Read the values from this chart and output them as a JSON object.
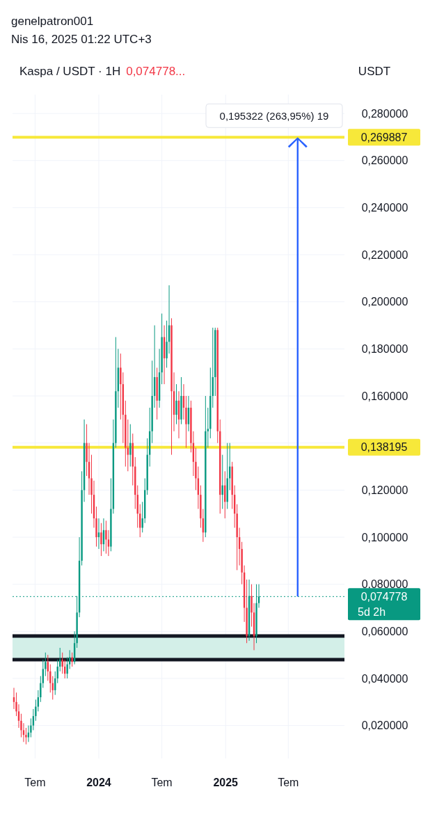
{
  "chart_data": {
    "type": "candlestick",
    "title": "genelpatron001",
    "subtitle": "Nis 16, 2025 01:22 UTC+3",
    "legend_title": "Kaspa / USDT · 1H",
    "ylabel": "USDT",
    "colors": [
      "#f23645",
      "#f23645",
      "#f23645",
      "#f23645",
      "#f23645",
      "#f23645",
      "#089981",
      "#089981",
      "#089981",
      "#089981",
      "#089981",
      "#089981",
      "#089981",
      "#089981",
      "#f23645",
      "#f23645",
      "#f23645",
      "#089981",
      "#089981",
      "#089981",
      "#f23645",
      "#f23645",
      "#089981",
      "#089981",
      "#f23645",
      "#089981",
      "#089981",
      "#089981",
      "#089981",
      "#089981",
      "#f23645",
      "#f23645",
      "#f23645",
      "#f23645",
      "#f23645",
      "#089981",
      "#f23645",
      "#089981",
      "#f23645",
      "#f23645",
      "#089981",
      "#089981",
      "#089981",
      "#089981",
      "#f23645",
      "#f23645",
      "#f23645",
      "#f23645",
      "#089981",
      "#f23645",
      "#f23645",
      "#f23645",
      "#f23645",
      "#089981",
      "#089981",
      "#089981",
      "#089981",
      "#089981",
      "#089981",
      "#f23645",
      "#089981",
      "#089981",
      "#f23645",
      "#089981",
      "#089981",
      "#f23645",
      "#f23645",
      "#089981",
      "#f23645",
      "#089981",
      "#f23645",
      "#f23645",
      "#089981",
      "#f23645",
      "#f23645",
      "#f23645",
      "#f23645",
      "#f23645",
      "#f23645",
      "#089981",
      "#089981",
      "#089981",
      "#089981",
      "#089981",
      "#f23645",
      "#f23645",
      "#089981",
      "#f23645",
      "#089981",
      "#089981",
      "#f23645",
      "#f23645",
      "#f23645",
      "#f23645",
      "#f23645",
      "#f23645",
      "#f23645",
      "#089981",
      "#f23645",
      "#f23645",
      "#089981",
      "#089981"
    ],
    "x": [
      "2023-05-01",
      "2023-05-08",
      "2023-05-15",
      "2023-05-22",
      "2023-05-29",
      "2023-06-05",
      "2023-06-12",
      "2023-06-19",
      "2023-06-26",
      "2023-07-03",
      "2023-07-10",
      "2023-07-17",
      "2023-07-24",
      "2023-07-31",
      "2023-08-07",
      "2023-08-14",
      "2023-08-21",
      "2023-08-28",
      "2023-09-04",
      "2023-09-11",
      "2023-09-18",
      "2023-09-25",
      "2023-10-02",
      "2023-10-09",
      "2023-10-16",
      "2023-10-23",
      "2023-10-30",
      "2023-11-06",
      "2023-11-13",
      "2023-11-20",
      "2023-11-27",
      "2023-12-04",
      "2023-12-11",
      "2023-12-18",
      "2023-12-25",
      "2024-01-01",
      "2024-01-08",
      "2024-01-15",
      "2024-01-22",
      "2024-01-29",
      "2024-02-05",
      "2024-02-12",
      "2024-02-19",
      "2024-02-26",
      "2024-03-04",
      "2024-03-11",
      "2024-03-18",
      "2024-03-25",
      "2024-04-01",
      "2024-04-08",
      "2024-04-15",
      "2024-04-22",
      "2024-04-29",
      "2024-05-06",
      "2024-05-13",
      "2024-05-20",
      "2024-05-27",
      "2024-06-03",
      "2024-06-10",
      "2024-06-17",
      "2024-06-24",
      "2024-07-01",
      "2024-07-08",
      "2024-07-15",
      "2024-07-22",
      "2024-07-29",
      "2024-08-05",
      "2024-08-12",
      "2024-08-19",
      "2024-08-26",
      "2024-09-02",
      "2024-09-09",
      "2024-09-16",
      "2024-09-23",
      "2024-09-30",
      "2024-10-07",
      "2024-10-14",
      "2024-10-21",
      "2024-10-28",
      "2024-11-04",
      "2024-11-11",
      "2024-11-18",
      "2024-11-25",
      "2024-12-02",
      "2024-12-09",
      "2024-12-16",
      "2024-12-23",
      "2024-12-30",
      "2025-01-06",
      "2025-01-13",
      "2025-01-20",
      "2025-01-27",
      "2025-02-03",
      "2025-02-10",
      "2025-02-17",
      "2025-02-24",
      "2025-03-03",
      "2025-03-10",
      "2025-03-17",
      "2025-03-24",
      "2025-03-31",
      "2025-04-07"
    ],
    "ohlc": [
      [
        0.032,
        0.036,
        0.027,
        0.03
      ],
      [
        0.03,
        0.034,
        0.024,
        0.026
      ],
      [
        0.026,
        0.029,
        0.019,
        0.022
      ],
      [
        0.022,
        0.025,
        0.015,
        0.018
      ],
      [
        0.018,
        0.021,
        0.013,
        0.016
      ],
      [
        0.016,
        0.019,
        0.012,
        0.015
      ],
      [
        0.015,
        0.02,
        0.013,
        0.017
      ],
      [
        0.017,
        0.023,
        0.015,
        0.02
      ],
      [
        0.02,
        0.027,
        0.018,
        0.024
      ],
      [
        0.024,
        0.031,
        0.022,
        0.028
      ],
      [
        0.028,
        0.035,
        0.026,
        0.032
      ],
      [
        0.032,
        0.041,
        0.03,
        0.038
      ],
      [
        0.038,
        0.048,
        0.036,
        0.044
      ],
      [
        0.044,
        0.051,
        0.041,
        0.047
      ],
      [
        0.047,
        0.05,
        0.039,
        0.043
      ],
      [
        0.043,
        0.046,
        0.034,
        0.038
      ],
      [
        0.038,
        0.041,
        0.031,
        0.035
      ],
      [
        0.035,
        0.043,
        0.033,
        0.04
      ],
      [
        0.04,
        0.048,
        0.038,
        0.045
      ],
      [
        0.045,
        0.053,
        0.043,
        0.048
      ],
      [
        0.048,
        0.051,
        0.042,
        0.045
      ],
      [
        0.045,
        0.048,
        0.04,
        0.042
      ],
      [
        0.042,
        0.049,
        0.04,
        0.046
      ],
      [
        0.046,
        0.052,
        0.044,
        0.049
      ],
      [
        0.049,
        0.051,
        0.045,
        0.047
      ],
      [
        0.047,
        0.06,
        0.046,
        0.055
      ],
      [
        0.055,
        0.075,
        0.053,
        0.068
      ],
      [
        0.068,
        0.1,
        0.066,
        0.09
      ],
      [
        0.09,
        0.128,
        0.088,
        0.12
      ],
      [
        0.12,
        0.15,
        0.115,
        0.14
      ],
      [
        0.14,
        0.148,
        0.126,
        0.132
      ],
      [
        0.132,
        0.14,
        0.118,
        0.125
      ],
      [
        0.125,
        0.135,
        0.11,
        0.118
      ],
      [
        0.118,
        0.124,
        0.104,
        0.108
      ],
      [
        0.108,
        0.113,
        0.096,
        0.1
      ],
      [
        0.1,
        0.108,
        0.095,
        0.102
      ],
      [
        0.102,
        0.106,
        0.092,
        0.097
      ],
      [
        0.097,
        0.108,
        0.094,
        0.103
      ],
      [
        0.103,
        0.107,
        0.093,
        0.099
      ],
      [
        0.099,
        0.103,
        0.092,
        0.096
      ],
      [
        0.096,
        0.125,
        0.094,
        0.112
      ],
      [
        0.112,
        0.15,
        0.11,
        0.14
      ],
      [
        0.14,
        0.185,
        0.138,
        0.162
      ],
      [
        0.162,
        0.18,
        0.155,
        0.172
      ],
      [
        0.172,
        0.178,
        0.15,
        0.165
      ],
      [
        0.165,
        0.17,
        0.14,
        0.152
      ],
      [
        0.152,
        0.158,
        0.13,
        0.138
      ],
      [
        0.138,
        0.15,
        0.128,
        0.135
      ],
      [
        0.135,
        0.148,
        0.13,
        0.14
      ],
      [
        0.14,
        0.144,
        0.122,
        0.13
      ],
      [
        0.13,
        0.134,
        0.112,
        0.118
      ],
      [
        0.118,
        0.122,
        0.104,
        0.11
      ],
      [
        0.11,
        0.114,
        0.1,
        0.104
      ],
      [
        0.104,
        0.115,
        0.102,
        0.108
      ],
      [
        0.108,
        0.125,
        0.106,
        0.12
      ],
      [
        0.12,
        0.142,
        0.118,
        0.135
      ],
      [
        0.135,
        0.155,
        0.13,
        0.145
      ],
      [
        0.145,
        0.175,
        0.14,
        0.16
      ],
      [
        0.16,
        0.19,
        0.155,
        0.168
      ],
      [
        0.168,
        0.172,
        0.15,
        0.158
      ],
      [
        0.158,
        0.18,
        0.155,
        0.17
      ],
      [
        0.17,
        0.195,
        0.165,
        0.185
      ],
      [
        0.185,
        0.19,
        0.165,
        0.176
      ],
      [
        0.176,
        0.192,
        0.172,
        0.183
      ],
      [
        0.183,
        0.207,
        0.178,
        0.19
      ],
      [
        0.19,
        0.193,
        0.135,
        0.162
      ],
      [
        0.162,
        0.17,
        0.145,
        0.152
      ],
      [
        0.152,
        0.165,
        0.148,
        0.158
      ],
      [
        0.158,
        0.162,
        0.142,
        0.15
      ],
      [
        0.15,
        0.168,
        0.148,
        0.16
      ],
      [
        0.16,
        0.165,
        0.15,
        0.155
      ],
      [
        0.155,
        0.16,
        0.138,
        0.148
      ],
      [
        0.148,
        0.16,
        0.145,
        0.155
      ],
      [
        0.155,
        0.158,
        0.136,
        0.14
      ],
      [
        0.14,
        0.145,
        0.126,
        0.132
      ],
      [
        0.132,
        0.138,
        0.12,
        0.125
      ],
      [
        0.125,
        0.13,
        0.112,
        0.118
      ],
      [
        0.118,
        0.122,
        0.104,
        0.108
      ],
      [
        0.108,
        0.112,
        0.098,
        0.102
      ],
      [
        0.102,
        0.16,
        0.1,
        0.145
      ],
      [
        0.145,
        0.155,
        0.138,
        0.146
      ],
      [
        0.146,
        0.172,
        0.142,
        0.16
      ],
      [
        0.16,
        0.189,
        0.155,
        0.168
      ],
      [
        0.168,
        0.189,
        0.16,
        0.188
      ],
      [
        0.188,
        0.189,
        0.14,
        0.145
      ],
      [
        0.145,
        0.15,
        0.11,
        0.118
      ],
      [
        0.118,
        0.135,
        0.112,
        0.122
      ],
      [
        0.122,
        0.128,
        0.108,
        0.115
      ],
      [
        0.115,
        0.14,
        0.112,
        0.125
      ],
      [
        0.125,
        0.14,
        0.12,
        0.13
      ],
      [
        0.13,
        0.132,
        0.112,
        0.118
      ],
      [
        0.118,
        0.122,
        0.104,
        0.11
      ],
      [
        0.11,
        0.114,
        0.086,
        0.1
      ],
      [
        0.1,
        0.104,
        0.088,
        0.095
      ],
      [
        0.095,
        0.098,
        0.08,
        0.085
      ],
      [
        0.085,
        0.088,
        0.064,
        0.07
      ],
      [
        0.07,
        0.082,
        0.055,
        0.058
      ],
      [
        0.058,
        0.082,
        0.056,
        0.075
      ],
      [
        0.075,
        0.08,
        0.062,
        0.068
      ],
      [
        0.068,
        0.072,
        0.052,
        0.058
      ],
      [
        0.058,
        0.08,
        0.055,
        0.072
      ],
      [
        0.072,
        0.08,
        0.07,
        0.074778
      ]
    ],
    "xlim": [
      "2023-04-27",
      "2025-12-10"
    ],
    "xticks": [
      {
        "value": "2023-07-01",
        "label": "Tem"
      },
      {
        "value": "2024-01-01",
        "label": "2024"
      },
      {
        "value": "2024-07-01",
        "label": "Tem"
      },
      {
        "value": "2025-01-01",
        "label": "2025"
      },
      {
        "value": "2025-07-01",
        "label": "Tem"
      }
    ],
    "ylim": [
      0.006,
      0.288
    ],
    "yticks": [
      {
        "value": 0.02,
        "label": "0,020000"
      },
      {
        "value": 0.04,
        "label": "0,040000"
      },
      {
        "value": 0.06,
        "label": "0,060000"
      },
      {
        "value": 0.08,
        "label": "0,080000"
      },
      {
        "value": 0.1,
        "label": "0,100000"
      },
      {
        "value": 0.12,
        "label": "0,120000"
      },
      {
        "value": 0.14,
        "label": null
      },
      {
        "value": 0.16,
        "label": "0,160000"
      },
      {
        "value": 0.18,
        "label": "0,180000"
      },
      {
        "value": 0.2,
        "label": "0,200000"
      },
      {
        "value": 0.22,
        "label": "0,220000"
      },
      {
        "value": 0.24,
        "label": "0,240000"
      },
      {
        "value": 0.26,
        "label": "0,260000"
      },
      {
        "value": 0.28,
        "label": "0,280000"
      }
    ],
    "grid": true,
    "ref_lines": [
      {
        "axis": "y",
        "value": 0.269887,
        "label": "0,269887",
        "color": "#f7e83a"
      },
      {
        "axis": "y",
        "value": 0.138195,
        "label": "0,138195",
        "color": "#f7e83a"
      },
      {
        "axis": "y",
        "value": 0.074778,
        "label": "0,074778",
        "color": "#089981",
        "line_style": "dotted"
      },
      {
        "axis": "y",
        "value": 0.058,
        "color": "#131722"
      },
      {
        "axis": "y",
        "value": 0.048,
        "color": "#131722"
      }
    ],
    "bands": [
      {
        "axis": "y",
        "from": 0.048,
        "to": 0.058,
        "color": "#d3efe8"
      }
    ],
    "annotations": [
      "0,074778...",
      "5d 2h",
      {
        "text": "0,195322 (263,95%) 19",
        "x": "2025-07-28",
        "y": 0.269887
      }
    ]
  }
}
